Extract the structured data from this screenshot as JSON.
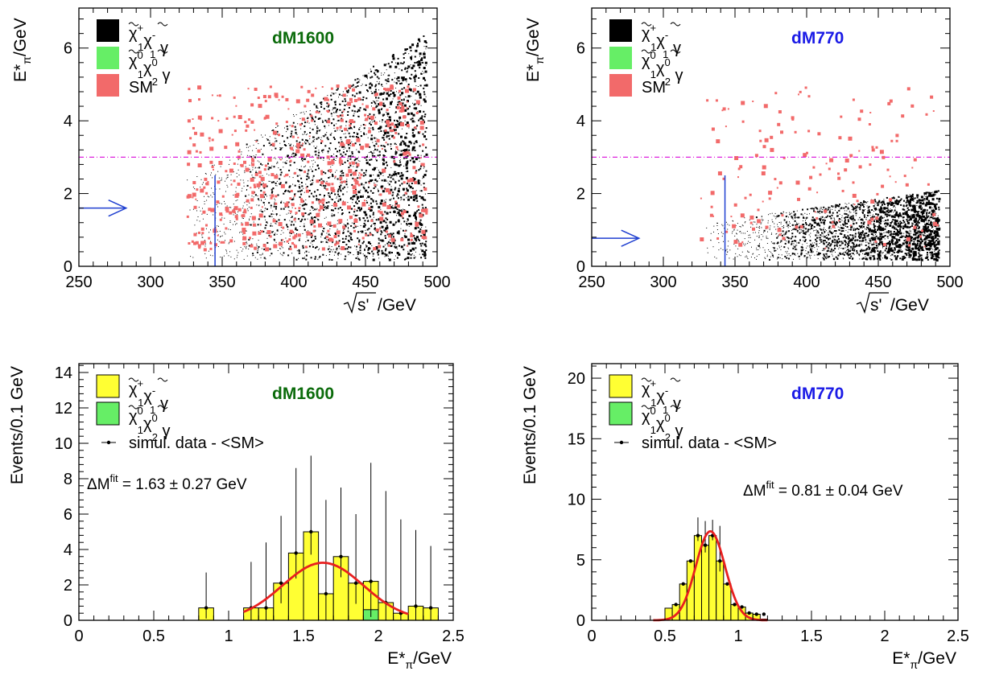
{
  "chart_data": [
    {
      "id": "top-left",
      "type": "scatter",
      "tag": "dM1600",
      "tag_color": "#0b6b0b",
      "xlabel_root": "s'",
      "xlabel_unit": "/GeV",
      "ylabel": "E*",
      "ylabel_sub": "π",
      "ylabel_unit": "/GeV",
      "xlim": [
        250,
        500
      ],
      "ylim": [
        0,
        7.1
      ],
      "x_ticks": [
        250,
        300,
        350,
        400,
        450,
        500
      ],
      "y_ticks": [
        0,
        2,
        4,
        6
      ],
      "legend": [
        {
          "sym": "χ",
          "sup1": "+",
          "sub1": "1",
          "sup2": "-",
          "sub2": "1",
          "tail": "γ",
          "color": "#000000"
        },
        {
          "sym": "χ",
          "sup1": "0",
          "sub1": "1",
          "sup2": "0",
          "sub2": "2",
          "tail": "γ",
          "color": "#66ee66"
        },
        {
          "text": "SM",
          "color": "#f26a6a"
        }
      ],
      "cut_line_y": 3.0,
      "cut_line_color": "#dd22dd",
      "cut_vertical": {
        "x": 345,
        "y_top": 2.5,
        "color": "#1f3fd0"
      },
      "arrow_y": 1.6,
      "arrow_x": [
        250,
        283
      ],
      "signal_region": {
        "x": [
          325,
          492
        ],
        "y": [
          0.2,
          6.4
        ],
        "color": "#000000"
      },
      "sm_region": {
        "x": [
          325,
          492
        ],
        "y": [
          0.5,
          5.0
        ],
        "color": "#f26a6a"
      }
    },
    {
      "id": "top-right",
      "type": "scatter",
      "tag": "dM770",
      "tag_color": "#1a1ae6",
      "xlabel_root": "s'",
      "xlabel_unit": "/GeV",
      "ylabel": "E*",
      "ylabel_sub": "π",
      "ylabel_unit": "/GeV",
      "xlim": [
        250,
        500
      ],
      "ylim": [
        0,
        7.1
      ],
      "x_ticks": [
        250,
        300,
        350,
        400,
        450,
        500
      ],
      "y_ticks": [
        0,
        2,
        4,
        6
      ],
      "legend": [
        {
          "sym": "χ",
          "sup1": "+",
          "sub1": "1",
          "sup2": "-",
          "sub2": "1",
          "tail": "γ",
          "color": "#000000"
        },
        {
          "sym": "χ",
          "sup1": "0",
          "sub1": "1",
          "sup2": "0",
          "sub2": "2",
          "tail": "γ",
          "color": "#66ee66"
        },
        {
          "text": "SM",
          "color": "#f26a6a"
        }
      ],
      "cut_line_y": 3.0,
      "cut_line_color": "#dd22dd",
      "cut_vertical": {
        "x": 343,
        "y_top": 2.5,
        "color": "#1f3fd0"
      },
      "arrow_y": 0.77,
      "arrow_x": [
        250,
        283
      ],
      "signal_region": {
        "x": [
          325,
          492
        ],
        "y": [
          0.2,
          1.9
        ],
        "color": "#000000"
      },
      "sm_region": {
        "x": [
          325,
          492
        ],
        "y": [
          0.5,
          5.0
        ],
        "color": "#f26a6a"
      }
    },
    {
      "id": "bottom-left",
      "type": "bar",
      "tag": "dM1600",
      "tag_color": "#0b6b0b",
      "xlabel": "E*",
      "xlabel_sub": "π",
      "xlabel_unit": "/GeV",
      "ylabel": "Events/0.1 GeV",
      "xlim": [
        0,
        2.5
      ],
      "ylim": [
        0,
        14.5
      ],
      "x_ticks": [
        0,
        0.5,
        1,
        1.5,
        2,
        2.5
      ],
      "y_ticks": [
        0,
        2,
        4,
        6,
        8,
        10,
        12,
        14
      ],
      "bin_width": 0.1,
      "legend": [
        {
          "sym": "χ",
          "sup1": "+",
          "sub1": "1",
          "sup2": "-",
          "sub2": "1",
          "tail": "γ",
          "color": "#ffff33"
        },
        {
          "sym": "χ",
          "sup1": "0",
          "sub1": "1",
          "sup2": "0",
          "sub2": "2",
          "tail": "γ",
          "color": "#66ee66"
        },
        {
          "text": "simul. data - <SM>",
          "marker": "errorbar"
        }
      ],
      "fit_label": "ΔM",
      "fit_sup": "fit",
      "fit_value": " = 1.63 ± 0.27 GeV",
      "series": [
        {
          "name": "chargino",
          "color": "#ffff33",
          "bin_lo": [
            0.8,
            1.1,
            1.2,
            1.3,
            1.4,
            1.5,
            1.6,
            1.7,
            1.8,
            1.9,
            2.0,
            2.1,
            2.2,
            2.3
          ],
          "values": [
            0.7,
            0.7,
            0.7,
            2.1,
            3.8,
            5.0,
            1.5,
            3.6,
            2.1,
            2.2,
            1.0,
            0.4,
            0.8,
            0.7
          ]
        },
        {
          "name": "neutralino",
          "color": "#66ee66",
          "bin_lo": [
            1.9
          ],
          "values": [
            0.6
          ]
        }
      ],
      "data_points": {
        "x": [
          0.85,
          1.15,
          1.25,
          1.35,
          1.45,
          1.55,
          1.65,
          1.75,
          1.85,
          1.95,
          2.05,
          2.15,
          2.25,
          2.35
        ],
        "y": [
          0.7,
          0.7,
          0.7,
          2.1,
          3.8,
          5.0,
          1.5,
          3.6,
          2.1,
          2.2,
          1.0,
          0.4,
          0.8,
          0.7
        ],
        "err": [
          2.0,
          2.6,
          3.7,
          3.8,
          4.8,
          4.3,
          5.3,
          3.9,
          3.9,
          6.7,
          6.3,
          5.3,
          4.3,
          3.5
        ]
      },
      "fit_curve": {
        "mean": 1.63,
        "sigma": 0.27,
        "amp": 3.25,
        "x_range": [
          1.1,
          2.2
        ],
        "color": "#e81f1f"
      }
    },
    {
      "id": "bottom-right",
      "type": "bar",
      "tag": "dM770",
      "tag_color": "#1a1ae6",
      "xlabel": "E*",
      "xlabel_sub": "π",
      "xlabel_unit": "/GeV",
      "ylabel": "Events/0.1 GeV",
      "xlim": [
        0,
        2.5
      ],
      "ylim": [
        0,
        21.2
      ],
      "x_ticks": [
        0,
        0.5,
        1,
        1.5,
        2,
        2.5
      ],
      "y_ticks": [
        0,
        5,
        10,
        15,
        20
      ],
      "bin_width": 0.05,
      "legend": [
        {
          "sym": "χ",
          "sup1": "+",
          "sub1": "1",
          "sup2": "-",
          "sub2": "1",
          "tail": "γ",
          "color": "#ffff33"
        },
        {
          "sym": "χ",
          "sup1": "0",
          "sub1": "1",
          "sup2": "0",
          "sub2": "2",
          "tail": "γ",
          "color": "#66ee66"
        },
        {
          "text": "simul. data - <SM>",
          "marker": "errorbar"
        }
      ],
      "fit_label": "ΔM",
      "fit_sup": "fit",
      "fit_value": " = 0.81 ± 0.04 GeV",
      "series": [
        {
          "name": "chargino",
          "color": "#ffff33",
          "bin_lo": [
            0.5,
            0.55,
            0.6,
            0.65,
            0.7,
            0.75,
            0.8,
            0.85,
            0.9,
            0.95,
            1.0,
            1.05,
            1.1,
            1.15
          ],
          "values": [
            1.0,
            1.3,
            3.0,
            4.9,
            7.0,
            6.2,
            7.0,
            4.9,
            3.0,
            1.3,
            1.1,
            0.6,
            0.5,
            0.1
          ]
        },
        {
          "name": "neutralino",
          "color": "#66ee66",
          "bin_lo": [],
          "values": []
        }
      ],
      "data_points": {
        "x": [
          0.575,
          0.625,
          0.675,
          0.725,
          0.775,
          0.825,
          0.875,
          0.925,
          0.975,
          1.025,
          1.075,
          1.125,
          1.175
        ],
        "y": [
          1.3,
          3.0,
          4.9,
          7.0,
          6.2,
          7.0,
          4.9,
          3.0,
          1.3,
          1.1,
          0.6,
          0.5,
          0.5
        ],
        "err": [
          0.0,
          0.0,
          0.0,
          1.5,
          2.0,
          1.3,
          2.9,
          0.0,
          0.0,
          0.0,
          0.0,
          0.0,
          0.0
        ]
      },
      "fit_curve": {
        "mean": 0.81,
        "sigma": 0.1,
        "amp": 7.35,
        "x_range": [
          0.42,
          1.2
        ],
        "color": "#e81f1f"
      }
    }
  ]
}
